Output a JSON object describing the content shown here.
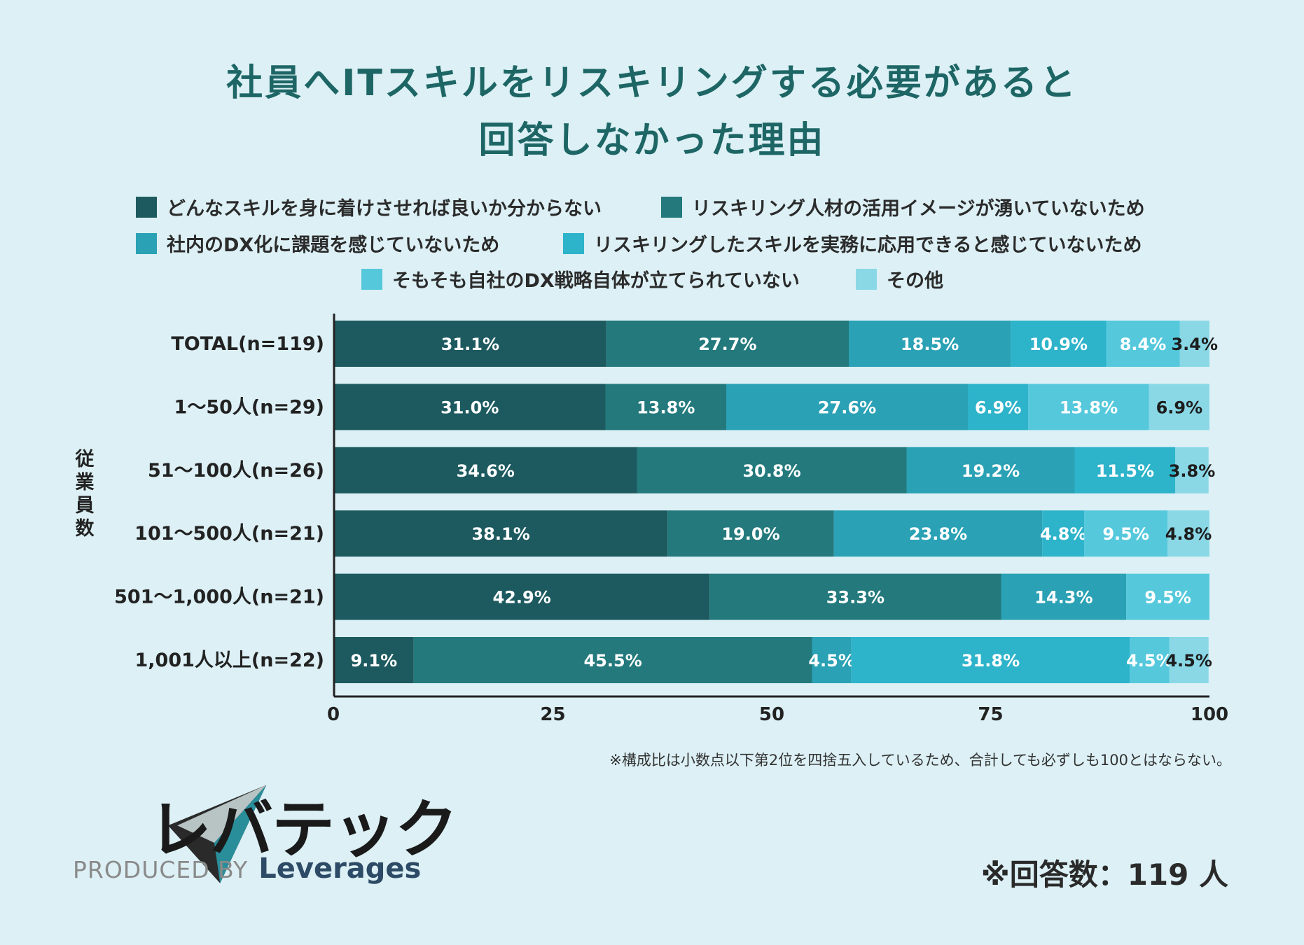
{
  "title": {
    "line1": "社員へITスキルをリスキリングする必要があると",
    "line2": "回答しなかった理由"
  },
  "colors": {
    "background": "#dcf0f5",
    "title": "#1d6665",
    "series": [
      "#1d5a5f",
      "#23797c",
      "#2aa1b4",
      "#2db3ca",
      "#55c8dc",
      "#8ad8e6"
    ],
    "label_dark": "#1d1d1d",
    "label_light": "#ffffff"
  },
  "legend": [
    "どんなスキルを身に着けさせれば良いか分からない",
    "リスキリング人材の活用イメージが湧いていないため",
    "社内のDX化に課題を感じていないため",
    "リスキリングしたスキルを実務に応用できると感じていないため",
    "そもそも自社のDX戦略自体が立てられていない",
    "その他"
  ],
  "yaxis_title": "従業員数",
  "chart_data": {
    "type": "stacked-bar-horizontal",
    "title": "社員へITスキルをリスキリングする必要があると回答しなかった理由",
    "ylabel": "従業員数",
    "xlabel": "",
    "xlim": [
      0,
      100
    ],
    "xticks": [
      0,
      25,
      50,
      75,
      100
    ],
    "categories": [
      "TOTAL(n=119)",
      "1〜50人(n=29)",
      "51〜100人(n=26)",
      "101〜500人(n=21)",
      "501〜1,000人(n=21)",
      "1,001人以上(n=22)"
    ],
    "series": [
      {
        "name": "どんなスキルを身に着けさせれば良いか分からない",
        "values": [
          31.1,
          31.0,
          34.6,
          38.1,
          42.9,
          9.1
        ]
      },
      {
        "name": "リスキリング人材の活用イメージが湧いていないため",
        "values": [
          27.7,
          13.8,
          30.8,
          19.0,
          33.3,
          45.5
        ]
      },
      {
        "name": "社内のDX化に課題を感じていないため",
        "values": [
          18.5,
          27.6,
          19.2,
          23.8,
          14.3,
          4.5
        ]
      },
      {
        "name": "リスキリングしたスキルを実務に応用できると感じていないため",
        "values": [
          10.9,
          6.9,
          11.5,
          4.8,
          0,
          31.8
        ]
      },
      {
        "name": "そもそも自社のDX戦略自体が立てられていない",
        "values": [
          8.4,
          13.8,
          0,
          9.5,
          9.5,
          4.5
        ]
      },
      {
        "name": "その他",
        "values": [
          3.4,
          6.9,
          3.8,
          4.8,
          0,
          4.5
        ]
      }
    ],
    "labels": [
      [
        "31.1%",
        "27.7%",
        "18.5%",
        "10.9%",
        "8.4%",
        "3.4%"
      ],
      [
        "31.0%",
        "13.8%",
        "27.6%",
        "6.9%",
        "13.8%",
        "6.9%"
      ],
      [
        "34.6%",
        "30.8%",
        "19.2%",
        "11.5%",
        "",
        "3.8%"
      ],
      [
        "38.1%",
        "19.0%",
        "23.8%",
        "4.8%",
        "9.5%",
        "4.8%"
      ],
      [
        "42.9%",
        "33.3%",
        "14.3%",
        "",
        "9.5%",
        ""
      ],
      [
        "9.1%",
        "45.5%",
        "4.5%",
        "31.8%",
        "4.5%",
        "4.5%"
      ]
    ]
  },
  "footnote": "※構成比は小数点以下第2位を四捨五入しているため、合計しても必ずしも100とはならない。",
  "respondents": "※回答数：119 人",
  "logo": {
    "brand": "レバテック",
    "produced_by": "PRODUCED BY",
    "company": "Leverages"
  }
}
